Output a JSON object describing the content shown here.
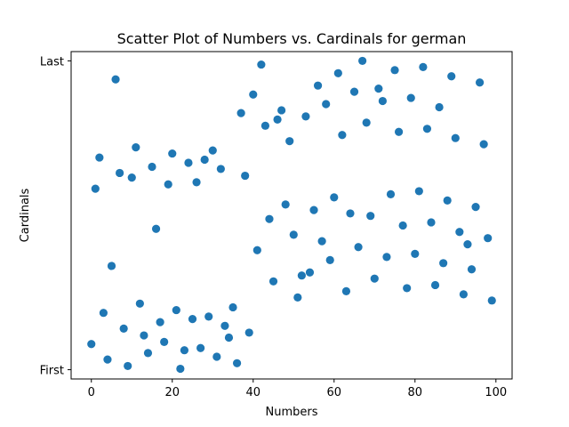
{
  "chart_data": {
    "type": "scatter",
    "title": "Scatter Plot of Numbers vs. Cardinals for german",
    "xlabel": "Numbers",
    "ylabel": "Cardinals",
    "xlim": [
      -5,
      104
    ],
    "ylim": [
      -0.03,
      1.03
    ],
    "xticks": [
      0,
      20,
      40,
      60,
      80,
      100
    ],
    "yticks": [
      {
        "value": 0,
        "label": "First"
      },
      {
        "value": 1,
        "label": "Last"
      }
    ],
    "grid": false,
    "marker_color": "#1f77b4",
    "points": [
      {
        "x": 0,
        "y": 0.083
      },
      {
        "x": 1,
        "y": 0.586
      },
      {
        "x": 2,
        "y": 0.687
      },
      {
        "x": 3,
        "y": 0.184
      },
      {
        "x": 4,
        "y": 0.033
      },
      {
        "x": 5,
        "y": 0.336
      },
      {
        "x": 6,
        "y": 0.94
      },
      {
        "x": 7,
        "y": 0.637
      },
      {
        "x": 8,
        "y": 0.133
      },
      {
        "x": 9,
        "y": 0.012
      },
      {
        "x": 10,
        "y": 0.622
      },
      {
        "x": 11,
        "y": 0.72
      },
      {
        "x": 12,
        "y": 0.214
      },
      {
        "x": 13,
        "y": 0.111
      },
      {
        "x": 14,
        "y": 0.054
      },
      {
        "x": 15,
        "y": 0.657
      },
      {
        "x": 16,
        "y": 0.456
      },
      {
        "x": 17,
        "y": 0.154
      },
      {
        "x": 18,
        "y": 0.09
      },
      {
        "x": 19,
        "y": 0.6
      },
      {
        "x": 20,
        "y": 0.7
      },
      {
        "x": 21,
        "y": 0.193
      },
      {
        "x": 22,
        "y": 0.003
      },
      {
        "x": 23,
        "y": 0.063
      },
      {
        "x": 24,
        "y": 0.67
      },
      {
        "x": 25,
        "y": 0.164
      },
      {
        "x": 26,
        "y": 0.607
      },
      {
        "x": 27,
        "y": 0.07
      },
      {
        "x": 28,
        "y": 0.68
      },
      {
        "x": 29,
        "y": 0.172
      },
      {
        "x": 30,
        "y": 0.71
      },
      {
        "x": 31,
        "y": 0.042
      },
      {
        "x": 32,
        "y": 0.65
      },
      {
        "x": 33,
        "y": 0.142
      },
      {
        "x": 34,
        "y": 0.104
      },
      {
        "x": 35,
        "y": 0.202
      },
      {
        "x": 36,
        "y": 0.021
      },
      {
        "x": 37,
        "y": 0.831
      },
      {
        "x": 38,
        "y": 0.628
      },
      {
        "x": 39,
        "y": 0.12
      },
      {
        "x": 40,
        "y": 0.891
      },
      {
        "x": 41,
        "y": 0.387
      },
      {
        "x": 42,
        "y": 0.988
      },
      {
        "x": 43,
        "y": 0.79
      },
      {
        "x": 44,
        "y": 0.488
      },
      {
        "x": 45,
        "y": 0.286
      },
      {
        "x": 46,
        "y": 0.81
      },
      {
        "x": 47,
        "y": 0.84
      },
      {
        "x": 48,
        "y": 0.535
      },
      {
        "x": 49,
        "y": 0.74
      },
      {
        "x": 50,
        "y": 0.437
      },
      {
        "x": 51,
        "y": 0.234
      },
      {
        "x": 52,
        "y": 0.305
      },
      {
        "x": 53,
        "y": 0.82
      },
      {
        "x": 54,
        "y": 0.315
      },
      {
        "x": 55,
        "y": 0.517
      },
      {
        "x": 56,
        "y": 0.92
      },
      {
        "x": 57,
        "y": 0.416
      },
      {
        "x": 58,
        "y": 0.86
      },
      {
        "x": 59,
        "y": 0.355
      },
      {
        "x": 60,
        "y": 0.558
      },
      {
        "x": 61,
        "y": 0.96
      },
      {
        "x": 62,
        "y": 0.76
      },
      {
        "x": 63,
        "y": 0.254
      },
      {
        "x": 64,
        "y": 0.506
      },
      {
        "x": 65,
        "y": 0.9
      },
      {
        "x": 66,
        "y": 0.397
      },
      {
        "x": 67,
        "y": 1.0
      },
      {
        "x": 68,
        "y": 0.8
      },
      {
        "x": 69,
        "y": 0.498
      },
      {
        "x": 70,
        "y": 0.295
      },
      {
        "x": 71,
        "y": 0.91
      },
      {
        "x": 72,
        "y": 0.87
      },
      {
        "x": 73,
        "y": 0.365
      },
      {
        "x": 74,
        "y": 0.568
      },
      {
        "x": 75,
        "y": 0.97
      },
      {
        "x": 76,
        "y": 0.77
      },
      {
        "x": 77,
        "y": 0.467
      },
      {
        "x": 78,
        "y": 0.264
      },
      {
        "x": 79,
        "y": 0.88
      },
      {
        "x": 80,
        "y": 0.375
      },
      {
        "x": 81,
        "y": 0.578
      },
      {
        "x": 82,
        "y": 0.98
      },
      {
        "x": 83,
        "y": 0.78
      },
      {
        "x": 84,
        "y": 0.477
      },
      {
        "x": 85,
        "y": 0.274
      },
      {
        "x": 86,
        "y": 0.85
      },
      {
        "x": 87,
        "y": 0.345
      },
      {
        "x": 88,
        "y": 0.548
      },
      {
        "x": 89,
        "y": 0.95
      },
      {
        "x": 90,
        "y": 0.75
      },
      {
        "x": 91,
        "y": 0.446
      },
      {
        "x": 92,
        "y": 0.244
      },
      {
        "x": 93,
        "y": 0.406
      },
      {
        "x": 94,
        "y": 0.325
      },
      {
        "x": 95,
        "y": 0.527
      },
      {
        "x": 96,
        "y": 0.93
      },
      {
        "x": 97,
        "y": 0.73
      },
      {
        "x": 98,
        "y": 0.426
      },
      {
        "x": 99,
        "y": 0.224
      }
    ]
  }
}
